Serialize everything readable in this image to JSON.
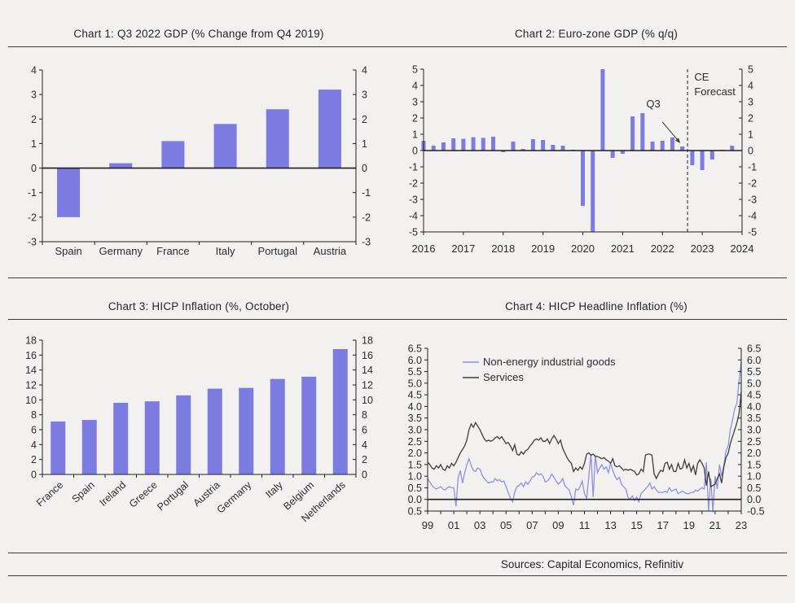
{
  "page": {
    "sources_label": "Sources: Capital Economics, Refinitiv"
  },
  "chart_data": [
    {
      "id": "c1",
      "type": "bar",
      "title": "Chart 1: Q3 2022 GDP (% Change from Q4 2019)",
      "categories": [
        "Spain",
        "Germany",
        "France",
        "Italy",
        "Portugal",
        "Austria"
      ],
      "values": [
        -2.0,
        0.2,
        1.1,
        1.8,
        2.4,
        3.2
      ],
      "ylim": [
        -3,
        4
      ],
      "ytick_step": 1,
      "ytick_decimals": 0,
      "zero_line": true,
      "grid": false,
      "dual_axis": true,
      "bar_color": "#7c7ce0"
    },
    {
      "id": "c2",
      "type": "bar-time",
      "title": "Chart 2: Euro-zone GDP (% q/q)",
      "x_start": 2016,
      "x_step": 0.25,
      "xlim": [
        2016,
        2024
      ],
      "ylim": [
        -5,
        5
      ],
      "ytick_step": 1,
      "ytick_decimals": 0,
      "zero_line": true,
      "grid": false,
      "dual_axis": true,
      "bar_color": "#7c7ce0",
      "values": [
        0.6,
        0.3,
        0.5,
        0.75,
        0.72,
        0.82,
        0.78,
        0.85,
        -0.1,
        0.55,
        0.1,
        0.7,
        0.65,
        0.35,
        0.3,
        0.05,
        -3.4,
        -5.0,
        5.0,
        -0.45,
        -0.2,
        2.1,
        2.3,
        0.55,
        0.6,
        0.8,
        0.25,
        -0.9,
        -1.2,
        -0.55,
        0.05,
        0.3
      ],
      "xtick_labels": [
        {
          "x": 2016,
          "t": "2016"
        },
        {
          "x": 2017,
          "t": "2017"
        },
        {
          "x": 2018,
          "t": "2018"
        },
        {
          "x": 2019,
          "t": "2019"
        },
        {
          "x": 2020,
          "t": "2020"
        },
        {
          "x": 2021,
          "t": "2021"
        },
        {
          "x": 2022,
          "t": "2022"
        },
        {
          "x": 2023,
          "t": "2023"
        },
        {
          "x": 2024,
          "t": "2024"
        }
      ],
      "forecast_x": 2022.63,
      "annotations": [
        {
          "t": "Q3",
          "x": 2021.77,
          "y": 2.65,
          "anchor": "middle"
        },
        {
          "t": "CE",
          "x": 2022.8,
          "y": 4.3,
          "anchor": "start"
        },
        {
          "t": "Forecast",
          "x": 2022.8,
          "y": 3.4,
          "anchor": "start"
        }
      ],
      "arrow": {
        "from": [
          2022.0,
          1.75
        ],
        "to": [
          2022.45,
          0.45
        ]
      }
    },
    {
      "id": "c3",
      "type": "bar",
      "title": "Chart 3: HICP Inflation (%, October)",
      "categories": [
        "France",
        "Spain",
        "Ireland",
        "Greece",
        "Portugal",
        "Austria",
        "Germany",
        "Italy",
        "Belgium",
        "Netherlands"
      ],
      "values": [
        7.1,
        7.3,
        9.6,
        9.8,
        10.6,
        11.5,
        11.6,
        12.8,
        13.1,
        16.8
      ],
      "ylim": [
        0,
        18
      ],
      "ytick_step": 2,
      "ytick_decimals": 0,
      "zero_line": false,
      "grid": false,
      "dual_axis": true,
      "bar_color": "#7c7ce0",
      "rotate_labels": true
    },
    {
      "id": "c4",
      "type": "line",
      "title": "Chart 4: HICP Headline Inflation (%)",
      "x_start": 1999,
      "x_step": 0.1666667,
      "xlim": [
        1999,
        2023
      ],
      "ylim": [
        -0.5,
        6.5
      ],
      "ytick_step": 0.5,
      "ytick_decimals": 1,
      "zero_line": true,
      "grid": false,
      "dual_axis": true,
      "legend_position": "top-left",
      "xtick_labels": [
        {
          "x": 1999,
          "t": "99"
        },
        {
          "x": 2001,
          "t": "01"
        },
        {
          "x": 2003,
          "t": "03"
        },
        {
          "x": 2005,
          "t": "05"
        },
        {
          "x": 2007,
          "t": "07"
        },
        {
          "x": 2009,
          "t": "09"
        },
        {
          "x": 2011,
          "t": "11"
        },
        {
          "x": 2013,
          "t": "13"
        },
        {
          "x": 2015,
          "t": "15"
        },
        {
          "x": 2017,
          "t": "17"
        },
        {
          "x": 2019,
          "t": "19"
        },
        {
          "x": 2021,
          "t": "21"
        },
        {
          "x": 2023,
          "t": "23"
        }
      ],
      "series": [
        {
          "name": "Non-energy industrial goods",
          "color": "#9090e0",
          "values": [
            0.9,
            0.75,
            0.6,
            0.5,
            0.45,
            0.5,
            0.55,
            0.45,
            0.4,
            0.5,
            0.55,
            0.5,
            0.5,
            -0.3,
            0.9,
            1.25,
            0.7,
            1.15,
            1.5,
            1.75,
            1.45,
            1.25,
            1.2,
            1.35,
            1.3,
            1.05,
            0.9,
            0.8,
            0.7,
            0.75,
            0.75,
            0.9,
            0.8,
            0.85,
            0.75,
            0.8,
            0.55,
            0.3,
            0.05,
            -0.1,
            0.3,
            0.55,
            0.6,
            0.7,
            0.55,
            0.75,
            0.65,
            0.8,
            0.95,
            1.0,
            1.15,
            1.05,
            1.1,
            1.0,
            0.75,
            0.8,
            0.9,
            1.1,
            0.95,
            0.8,
            0.65,
            0.75,
            0.9,
            0.6,
            0.5,
            0.4,
            0.1,
            -0.25,
            0.45,
            0.4,
            0.55,
            0.8,
            0.25,
            0.05,
            0.95,
            1.95,
            0.1,
            1.9,
            1.15,
            1.35,
            1.5,
            1.3,
            1.4,
            1.15,
            1.55,
            1.25,
            1.0,
            0.85,
            0.95,
            0.65,
            0.55,
            0.45,
            0.1,
            0.0,
            0.15,
            -0.05,
            0.1,
            -0.1,
            0.25,
            0.35,
            0.45,
            0.55,
            0.7,
            0.45,
            0.55,
            0.4,
            0.3,
            0.3,
            0.3,
            0.35,
            0.3,
            0.5,
            0.35,
            0.4,
            0.45,
            0.25,
            0.3,
            0.35,
            0.3,
            0.25,
            0.25,
            0.3,
            0.3,
            0.4,
            0.35,
            0.45,
            0.5,
            0.45,
            1.6,
            -0.5,
            0.9,
            -0.55,
            1.0,
            0.45,
            1.5,
            1.0,
            1.45,
            2.1,
            2.3,
            3.0,
            3.4,
            3.9,
            4.15,
            5.1,
            5.95
          ]
        },
        {
          "name": "Services",
          "color": "#3d3d3d",
          "values": [
            1.6,
            1.5,
            1.35,
            1.3,
            1.45,
            1.35,
            1.5,
            1.3,
            1.25,
            1.45,
            1.35,
            1.55,
            1.45,
            1.6,
            1.8,
            2.0,
            2.15,
            2.3,
            2.55,
            3.0,
            3.25,
            3.1,
            3.3,
            3.15,
            3.0,
            2.8,
            2.6,
            2.5,
            2.55,
            2.5,
            2.55,
            2.65,
            2.7,
            2.6,
            2.7,
            2.55,
            2.4,
            2.45,
            2.3,
            2.1,
            2.35,
            1.95,
            1.9,
            2.05,
            1.95,
            2.1,
            2.15,
            2.3,
            2.4,
            2.55,
            2.6,
            2.55,
            2.65,
            2.5,
            2.5,
            2.6,
            2.4,
            2.6,
            2.75,
            2.6,
            2.4,
            2.55,
            2.2,
            2.0,
            1.8,
            1.65,
            1.55,
            1.2,
            1.35,
            1.25,
            1.4,
            1.3,
            1.55,
            1.95,
            2.0,
            1.9,
            1.95,
            1.85,
            1.85,
            1.8,
            1.75,
            1.8,
            1.7,
            1.65,
            1.55,
            1.75,
            1.45,
            1.4,
            1.45,
            1.35,
            1.25,
            1.3,
            1.25,
            1.3,
            1.25,
            1.2,
            1.05,
            1.1,
            1.3,
            1.2,
            1.9,
            1.95,
            1.95,
            1.9,
            1.1,
            0.9,
            1.1,
            1.25,
            1.2,
            1.55,
            1.6,
            1.3,
            1.5,
            1.2,
            1.2,
            1.55,
            1.3,
            1.35,
            1.7,
            1.35,
            1.55,
            1.2,
            1.45,
            1.05,
            1.55,
            1.7,
            1.55,
            1.35,
            0.6,
            1.2,
            0.55,
            0.6,
            0.65,
            0.9,
            1.1,
            0.7,
            1.4,
            1.8,
            2.0,
            2.4,
            2.7,
            3.0,
            3.3,
            3.7,
            4.6
          ]
        }
      ]
    }
  ]
}
